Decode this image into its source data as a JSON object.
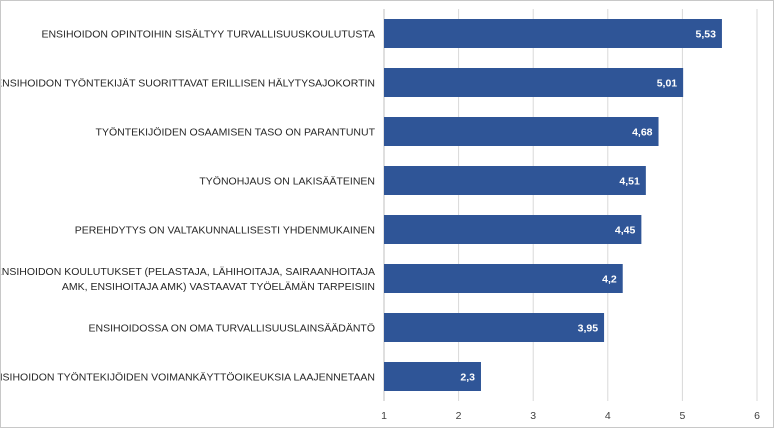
{
  "chart_data": {
    "type": "bar",
    "orientation": "horizontal",
    "categories": [
      [
        "ENSIHOIDON OPINTOIHIN SISÄLTYY TURVALLISUUSKOULUTUSTA"
      ],
      [
        "ENSIHOIDON TYÖNTEKIJÄT SUORITTAVAT ERILLISEN HÄLYTYSAJOKORTIN"
      ],
      [
        "TYÖNTEKIJÖIDEN OSAAMISEN TASO ON PARANTUNUT"
      ],
      [
        "TYÖNOHJAUS ON LAKISÄÄTEINEN"
      ],
      [
        "PEREHDYTYS ON VALTAKUNNALLISESTI YHDENMUKAINEN"
      ],
      [
        "ENSIHOIDON KOULUTUKSET (PELASTAJA, LÄHIHOITAJA, SAIRAANHOITAJA",
        "AMK, ENSIHOITAJA AMK) VASTAAVAT TYÖELÄMÄN TARPEISIIN"
      ],
      [
        "ENSIHOIDOSSA ON OMA TURVALLISUUSLAINSÄÄDÄNTÖ"
      ],
      [
        "ENSIHOIDON TYÖNTEKIJÖIDEN VOIMANKÄYTTÖOIKEUKSIA LAAJENNETAAN"
      ]
    ],
    "values": [
      5.53,
      5.01,
      4.68,
      4.51,
      4.45,
      4.2,
      3.95,
      2.3
    ],
    "data_labels": [
      "5,53",
      "5,01",
      "4,68",
      "4,51",
      "4,45",
      "4,2",
      "3,95",
      "2,3"
    ],
    "xlim": [
      1,
      6
    ],
    "x_ticks": [
      1,
      2,
      3,
      4,
      5,
      6
    ],
    "x_tick_labels": [
      "1",
      "2",
      "3",
      "4",
      "5",
      "6"
    ],
    "title": "",
    "xlabel": "",
    "ylabel": "",
    "grid": true,
    "legend": "none",
    "bar_color": "#2f5597",
    "grid_color": "#d9d9d9"
  }
}
